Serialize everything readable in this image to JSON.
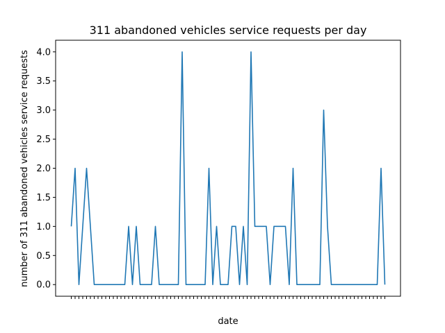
{
  "chart_data": {
    "type": "line",
    "title": "311 abandoned vehicles service requests per day",
    "xlabel": "date",
    "ylabel": "number of 311 abandoned vehicles service requests",
    "ylim": [
      -0.2,
      4.2
    ],
    "yticks": [
      "0.0",
      "0.5",
      "1.0",
      "1.5",
      "2.0",
      "2.5",
      "3.0",
      "3.5",
      "4.0"
    ],
    "grid": false,
    "legend": "none",
    "color": "#1f77b4",
    "x_tick_labels_note": "overlapping date tick labels, illegible",
    "series": [
      {
        "values": [
          1,
          2,
          0,
          1,
          2,
          1,
          0,
          0,
          0,
          0,
          0,
          0,
          0,
          0,
          0,
          1,
          0,
          1,
          0,
          0,
          0,
          0,
          1,
          0,
          0,
          0,
          0,
          0,
          0,
          4,
          0,
          0,
          0,
          0,
          0,
          0,
          2,
          0,
          1,
          0,
          0,
          0,
          1,
          1,
          0,
          1,
          0,
          4,
          1,
          1,
          1,
          1,
          0,
          1,
          1,
          1,
          1,
          0,
          2,
          0,
          0,
          0,
          0,
          0,
          0,
          0,
          3,
          1,
          0,
          0,
          0,
          0,
          0,
          0,
          0,
          0,
          0,
          0,
          0,
          0,
          0,
          2,
          0
        ]
      }
    ]
  }
}
